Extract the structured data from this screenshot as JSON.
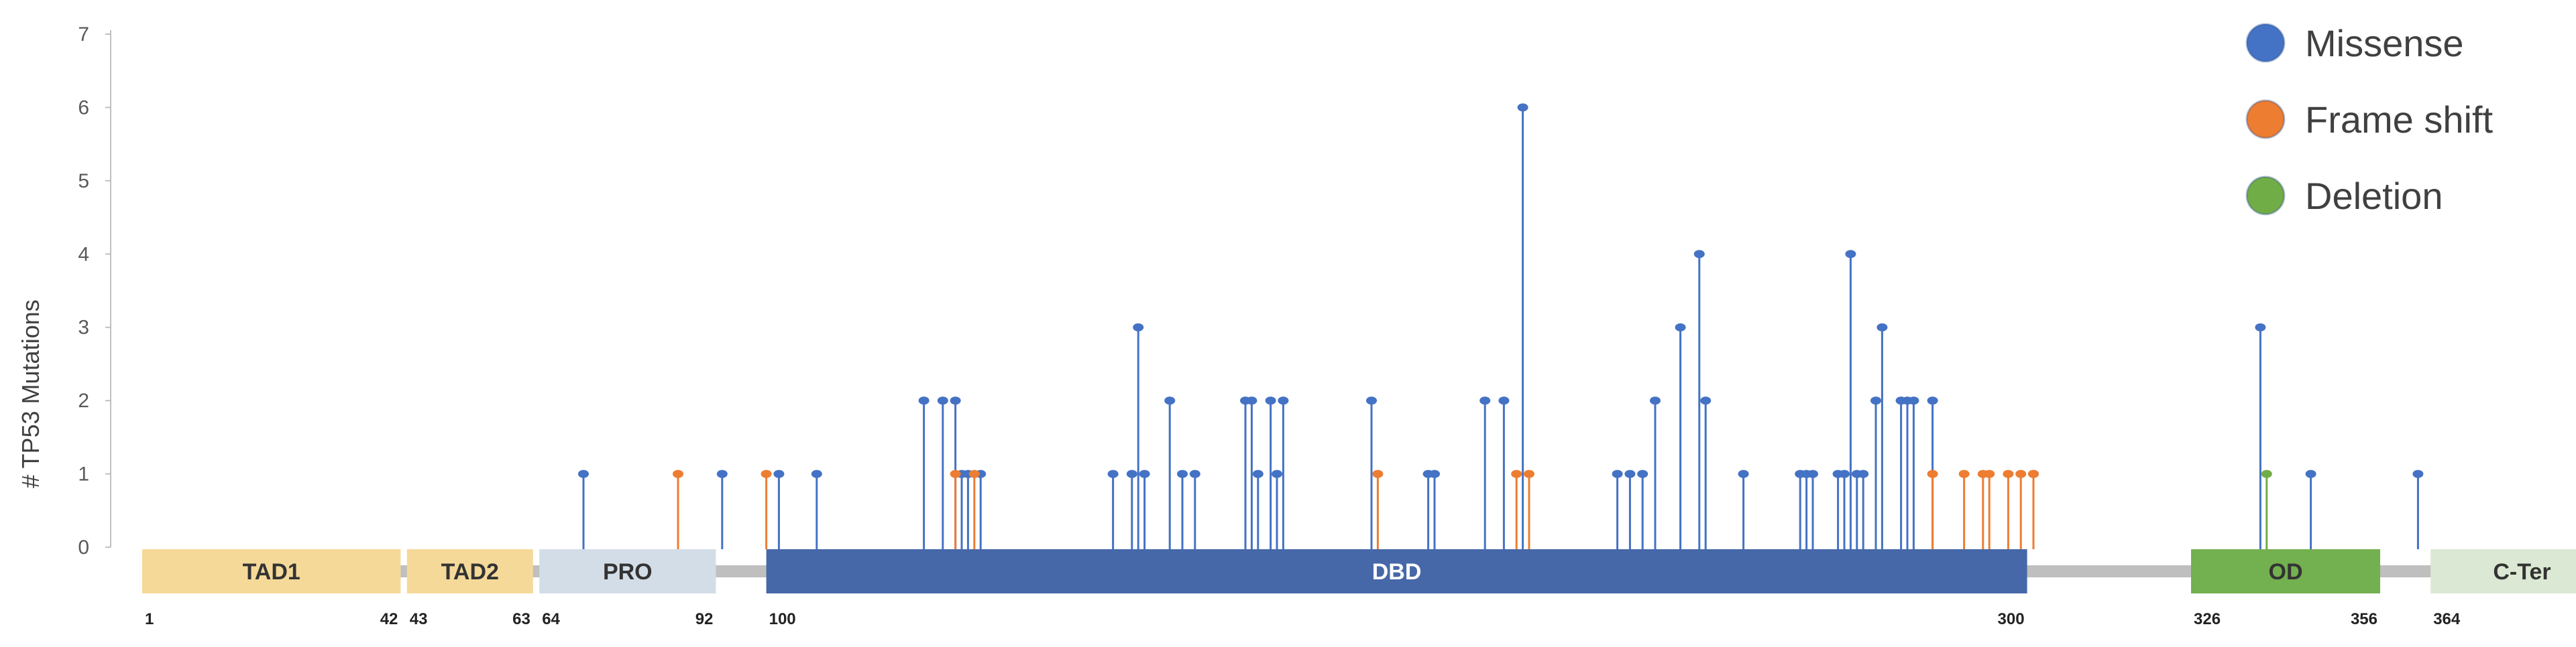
{
  "chart_data": {
    "type": "lollipop",
    "xlabel": "",
    "ylabel": "# TP53 Mutations",
    "ylim": [
      0,
      7
    ],
    "yticks": [
      0,
      1,
      2,
      3,
      4,
      5,
      6,
      7
    ],
    "grid": false,
    "legend_position": "top-right",
    "protein_length": 393,
    "backbone_color": "#bfbfbf",
    "legend": [
      {
        "name": "Missense",
        "color": "#4472c4"
      },
      {
        "name": "Frame shift",
        "color": "#ed7d31"
      },
      {
        "name": "Deletion",
        "color": "#70ad47"
      }
    ],
    "domains": [
      {
        "name": "TAD1",
        "start": 1,
        "end": 42,
        "start_label": "1",
        "end_label": "42",
        "color": "#f5d999",
        "text_color": "#333333"
      },
      {
        "name": "TAD2",
        "start": 43,
        "end": 63,
        "start_label": "43",
        "end_label": "63",
        "color": "#f5d999",
        "text_color": "#333333"
      },
      {
        "name": "PRO",
        "start": 64,
        "end": 92,
        "start_label": "64",
        "end_label": "92",
        "color": "#d3dde8",
        "text_color": "#333333"
      },
      {
        "name": "DBD",
        "start": 100,
        "end": 300,
        "start_label": "100",
        "end_label": "300",
        "color": "#4668a8",
        "text_color": "#ffffff"
      },
      {
        "name": "OD",
        "start": 326,
        "end": 356,
        "start_label": "326",
        "end_label": "356",
        "color": "#73b04f",
        "text_color": "#333333"
      },
      {
        "name": "C-Ter",
        "start": 364,
        "end": 393,
        "start_label": "364",
        "end_label": "393",
        "color": "#dbe8d3",
        "text_color": "#333333"
      }
    ],
    "series": [
      {
        "name": "Missense",
        "color": "#4472c4",
        "points": [
          {
            "x": 71,
            "y": 1
          },
          {
            "x": 93,
            "y": 1
          },
          {
            "x": 102,
            "y": 1
          },
          {
            "x": 108,
            "y": 1
          },
          {
            "x": 125,
            "y": 2
          },
          {
            "x": 128,
            "y": 2
          },
          {
            "x": 130,
            "y": 2
          },
          {
            "x": 131,
            "y": 1
          },
          {
            "x": 132,
            "y": 1
          },
          {
            "x": 134,
            "y": 1
          },
          {
            "x": 155,
            "y": 1
          },
          {
            "x": 158,
            "y": 1
          },
          {
            "x": 159,
            "y": 3
          },
          {
            "x": 160,
            "y": 1
          },
          {
            "x": 164,
            "y": 2
          },
          {
            "x": 166,
            "y": 1
          },
          {
            "x": 168,
            "y": 1
          },
          {
            "x": 176,
            "y": 2
          },
          {
            "x": 177,
            "y": 2
          },
          {
            "x": 178,
            "y": 1
          },
          {
            "x": 180,
            "y": 2
          },
          {
            "x": 181,
            "y": 1
          },
          {
            "x": 182,
            "y": 2
          },
          {
            "x": 196,
            "y": 2
          },
          {
            "x": 205,
            "y": 1
          },
          {
            "x": 206,
            "y": 1
          },
          {
            "x": 214,
            "y": 2
          },
          {
            "x": 217,
            "y": 2
          },
          {
            "x": 220,
            "y": 6
          },
          {
            "x": 235,
            "y": 1
          },
          {
            "x": 237,
            "y": 1
          },
          {
            "x": 239,
            "y": 1
          },
          {
            "x": 241,
            "y": 2
          },
          {
            "x": 245,
            "y": 3
          },
          {
            "x": 248,
            "y": 4
          },
          {
            "x": 249,
            "y": 2
          },
          {
            "x": 255,
            "y": 1
          },
          {
            "x": 264,
            "y": 1
          },
          {
            "x": 265,
            "y": 1
          },
          {
            "x": 266,
            "y": 1
          },
          {
            "x": 270,
            "y": 1
          },
          {
            "x": 271,
            "y": 1
          },
          {
            "x": 272,
            "y": 4
          },
          {
            "x": 273,
            "y": 1
          },
          {
            "x": 274,
            "y": 1
          },
          {
            "x": 276,
            "y": 2
          },
          {
            "x": 277,
            "y": 3
          },
          {
            "x": 280,
            "y": 2
          },
          {
            "x": 281,
            "y": 2
          },
          {
            "x": 282,
            "y": 2
          },
          {
            "x": 285,
            "y": 2
          },
          {
            "x": 301,
            "y": 1
          },
          {
            "x": 337,
            "y": 3
          },
          {
            "x": 345,
            "y": 1
          },
          {
            "x": 362,
            "y": 1
          }
        ]
      },
      {
        "name": "Frame shift",
        "color": "#ed7d31",
        "points": [
          {
            "x": 86,
            "y": 1
          },
          {
            "x": 100,
            "y": 1
          },
          {
            "x": 130,
            "y": 1
          },
          {
            "x": 133,
            "y": 1
          },
          {
            "x": 197,
            "y": 1
          },
          {
            "x": 219,
            "y": 1
          },
          {
            "x": 221,
            "y": 1
          },
          {
            "x": 285,
            "y": 1
          },
          {
            "x": 290,
            "y": 1
          },
          {
            "x": 293,
            "y": 1
          },
          {
            "x": 294,
            "y": 1
          },
          {
            "x": 297,
            "y": 1
          },
          {
            "x": 299,
            "y": 1
          },
          {
            "x": 301,
            "y": 1
          }
        ]
      },
      {
        "name": "Deletion",
        "color": "#70ad47",
        "points": [
          {
            "x": 338,
            "y": 1
          }
        ]
      }
    ]
  }
}
